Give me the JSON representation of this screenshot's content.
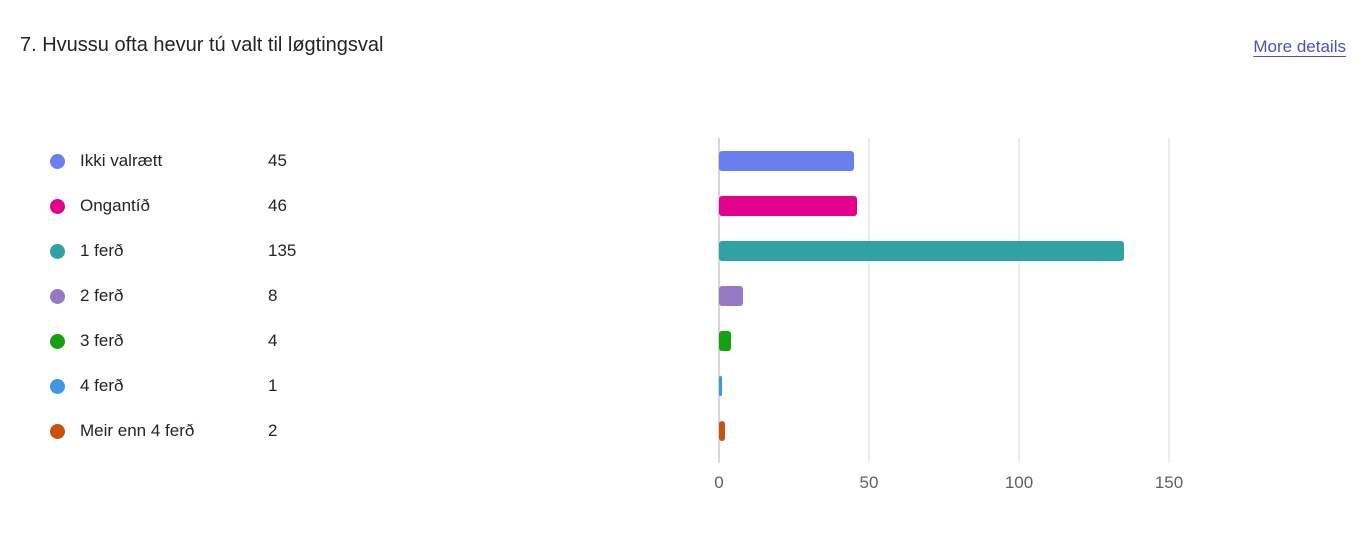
{
  "question": {
    "title": "7. Hvussu ofta hevur tú valt til løgtingsval",
    "more_details_label": "More details"
  },
  "chart_data": {
    "type": "bar",
    "orientation": "horizontal",
    "categories": [
      "Ikki valrætt",
      "Ongantíð",
      "1 ferð",
      "2 ferð",
      "3 ferð",
      "4 ferð",
      "Meir enn 4 ferð"
    ],
    "values": [
      45,
      46,
      135,
      8,
      4,
      1,
      2
    ],
    "colors": [
      "#6b7ef0",
      "#e3008c",
      "#2ea2a5",
      "#9479c4",
      "#13a10e",
      "#3f98e0",
      "#ca5010"
    ],
    "xticks": [
      0,
      50,
      100,
      150
    ],
    "xlim": [
      0,
      150
    ],
    "grid": true,
    "legend_position": "left"
  }
}
